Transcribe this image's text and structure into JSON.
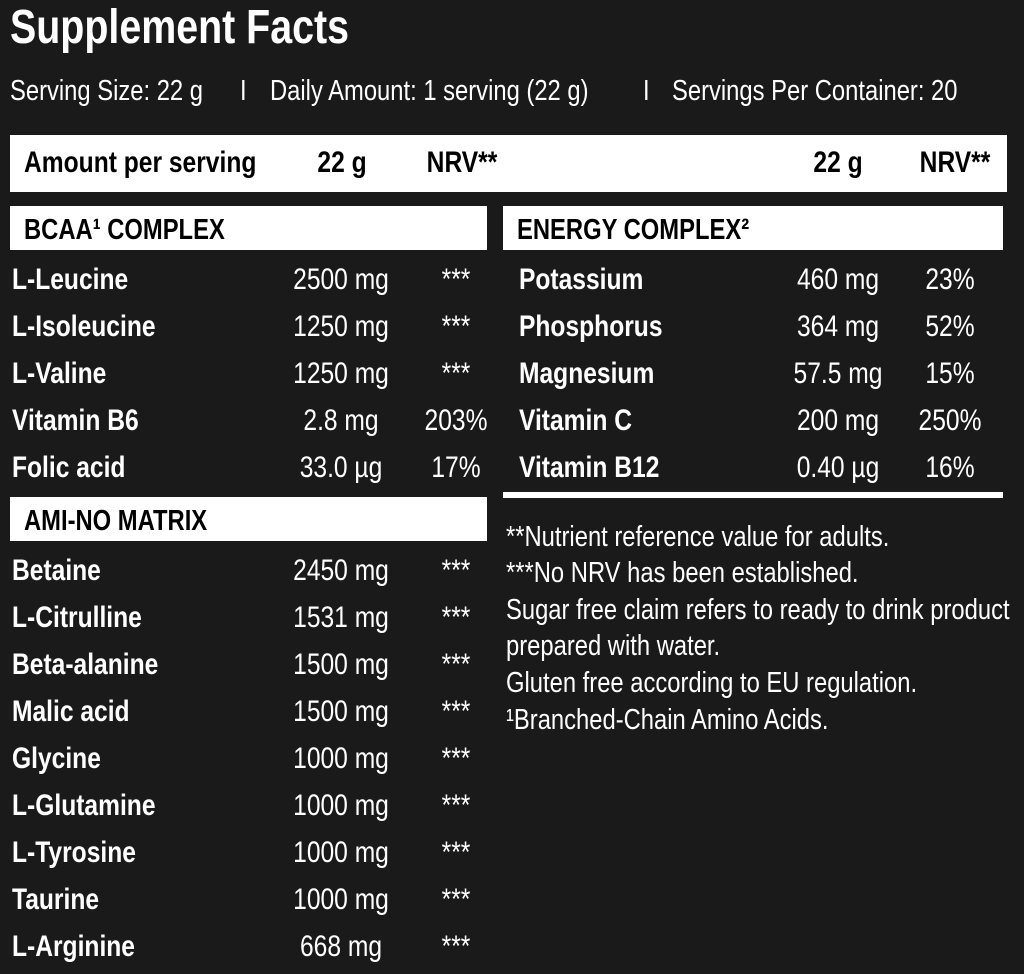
{
  "title": "Supplement Facts",
  "serving": [
    "Serving Size: 22 g",
    "I",
    "Daily Amount: 1 serving (22 g)",
    "I",
    "Servings Per Container: 20"
  ],
  "header": [
    "Amount per serving",
    "22 g",
    "NRV**",
    "22 g",
    "NRV**"
  ],
  "sections": [
    {
      "title": "BCAA¹ COMPLEX",
      "rows": [
        [
          "L-Leucine",
          "2500 mg",
          "***"
        ],
        [
          "L-Isoleucine",
          "1250 mg",
          "***"
        ],
        [
          "L-Valine",
          "1250 mg",
          "***"
        ],
        [
          "Vitamin B6",
          "2.8 mg",
          "203%"
        ],
        [
          "Folic acid",
          "33.0 µg",
          "17%"
        ]
      ]
    },
    {
      "title": "AMI-NO MATRIX",
      "rows": [
        [
          "Betaine",
          "2450 mg",
          "***"
        ],
        [
          "L-Citrulline",
          "1531 mg",
          "***"
        ],
        [
          "Beta-alanine",
          "1500 mg",
          "***"
        ],
        [
          "Malic acid",
          "1500 mg",
          "***"
        ],
        [
          "Glycine",
          "1000 mg",
          "***"
        ],
        [
          "L-Glutamine",
          "1000 mg",
          "***"
        ],
        [
          "L-Tyrosine",
          "1000 mg",
          "***"
        ],
        [
          "Taurine",
          "1000 mg",
          "***"
        ],
        [
          "L-Arginine",
          "668 mg",
          "***"
        ]
      ]
    },
    {
      "title": "ENERGY COMPLEX²",
      "rows": [
        [
          "Potassium",
          "460 mg",
          "23%"
        ],
        [
          "Phosphorus",
          "364 mg",
          "52%"
        ],
        [
          "Magnesium",
          "57.5 mg",
          "15%"
        ],
        [
          "Vitamin C",
          "200 mg",
          "250%"
        ],
        [
          "Vitamin B12",
          "0.40 µg",
          "16%"
        ]
      ]
    }
  ],
  "notes": [
    "**Nutrient reference value for adults.",
    "***No NRV has been established.",
    "Sugar free claim refers to ready to drink product",
    "prepared with water.",
    "Gluten free according to EU regulation.",
    "¹Branched-Chain Amino Acids."
  ]
}
